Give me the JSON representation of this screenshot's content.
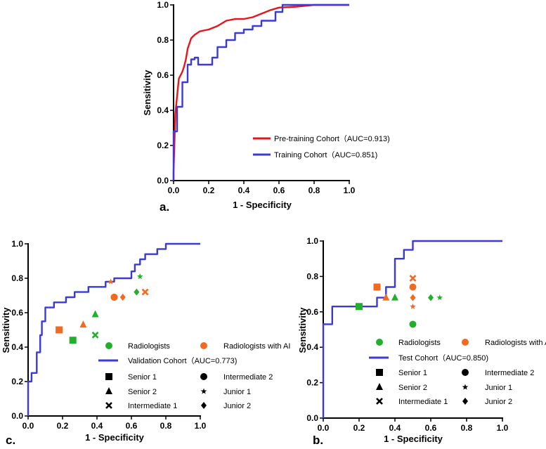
{
  "colors": {
    "red": "#e8141b",
    "blue": "#3a3ad6",
    "green": "#22b02a",
    "orange": "#f26a21",
    "black": "#000000"
  },
  "chart_data": [
    {
      "id": "a",
      "type": "line",
      "panel_label": "a.",
      "xlabel": "1 - Specificity",
      "ylabel": "Sensitivity",
      "xlim": [
        0,
        1
      ],
      "ylim": [
        0,
        1
      ],
      "xticks": [
        "0.0",
        "0.2",
        "0.4",
        "0.6",
        "0.8",
        "1.0"
      ],
      "yticks": [
        "0.0",
        "0.2",
        "0.4",
        "0.6",
        "0.8",
        "1.0"
      ],
      "series": [
        {
          "name": "Pre-training Cohort（AUC=0.913)",
          "color": "red",
          "step": false,
          "points": [
            [
              0,
              0
            ],
            [
              0,
              0.05
            ],
            [
              0.005,
              0.22
            ],
            [
              0.01,
              0.38
            ],
            [
              0.02,
              0.48
            ],
            [
              0.03,
              0.58
            ],
            [
              0.04,
              0.6
            ],
            [
              0.05,
              0.62
            ],
            [
              0.06,
              0.65
            ],
            [
              0.07,
              0.69
            ],
            [
              0.08,
              0.75
            ],
            [
              0.09,
              0.78
            ],
            [
              0.1,
              0.81
            ],
            [
              0.12,
              0.83
            ],
            [
              0.15,
              0.85
            ],
            [
              0.2,
              0.86
            ],
            [
              0.25,
              0.88
            ],
            [
              0.3,
              0.91
            ],
            [
              0.35,
              0.92
            ],
            [
              0.4,
              0.92
            ],
            [
              0.45,
              0.93
            ],
            [
              0.5,
              0.95
            ],
            [
              0.55,
              0.97
            ],
            [
              0.6,
              0.985
            ],
            [
              0.7,
              0.99
            ],
            [
              0.8,
              1.0
            ],
            [
              1.0,
              1.0
            ]
          ]
        },
        {
          "name": "Training Cohort（AUC=0.851)",
          "color": "blue",
          "step": true,
          "points": [
            [
              0,
              0
            ],
            [
              0,
              0.28
            ],
            [
              0.02,
              0.28
            ],
            [
              0.02,
              0.42
            ],
            [
              0.05,
              0.42
            ],
            [
              0.05,
              0.56
            ],
            [
              0.08,
              0.56
            ],
            [
              0.08,
              0.66
            ],
            [
              0.1,
              0.66
            ],
            [
              0.1,
              0.69
            ],
            [
              0.12,
              0.69
            ],
            [
              0.12,
              0.7
            ],
            [
              0.14,
              0.7
            ],
            [
              0.14,
              0.66
            ],
            [
              0.22,
              0.66
            ],
            [
              0.22,
              0.7
            ],
            [
              0.25,
              0.7
            ],
            [
              0.25,
              0.76
            ],
            [
              0.3,
              0.76
            ],
            [
              0.3,
              0.8
            ],
            [
              0.35,
              0.8
            ],
            [
              0.35,
              0.84
            ],
            [
              0.4,
              0.84
            ],
            [
              0.4,
              0.86
            ],
            [
              0.45,
              0.86
            ],
            [
              0.45,
              0.88
            ],
            [
              0.5,
              0.88
            ],
            [
              0.5,
              0.91
            ],
            [
              0.58,
              0.91
            ],
            [
              0.58,
              0.96
            ],
            [
              0.62,
              0.96
            ],
            [
              0.62,
              1.0
            ],
            [
              1.0,
              1.0
            ]
          ]
        }
      ]
    },
    {
      "id": "c",
      "type": "line",
      "panel_label": "c.",
      "xlabel": "1 - Specificity",
      "ylabel": "Sensitivity",
      "xlim": [
        0,
        1
      ],
      "ylim": [
        0,
        1
      ],
      "xticks": [
        "0.0",
        "0.2",
        "0.4",
        "0.6",
        "0.8",
        "1.0"
      ],
      "yticks": [
        "0.0",
        "0.2",
        "0.4",
        "0.6",
        "0.8",
        "1.0"
      ],
      "series": [
        {
          "name": "Validation Cohort（AUC=0.773)",
          "color": "blue",
          "step": true,
          "points": [
            [
              0,
              0
            ],
            [
              0,
              0.2
            ],
            [
              0.02,
              0.2
            ],
            [
              0.02,
              0.25
            ],
            [
              0.05,
              0.25
            ],
            [
              0.05,
              0.37
            ],
            [
              0.07,
              0.37
            ],
            [
              0.07,
              0.47
            ],
            [
              0.08,
              0.47
            ],
            [
              0.08,
              0.55
            ],
            [
              0.1,
              0.55
            ],
            [
              0.1,
              0.63
            ],
            [
              0.15,
              0.63
            ],
            [
              0.15,
              0.66
            ],
            [
              0.22,
              0.66
            ],
            [
              0.22,
              0.69
            ],
            [
              0.27,
              0.69
            ],
            [
              0.27,
              0.72
            ],
            [
              0.35,
              0.72
            ],
            [
              0.35,
              0.75
            ],
            [
              0.45,
              0.75
            ],
            [
              0.45,
              0.78
            ],
            [
              0.5,
              0.78
            ],
            [
              0.5,
              0.8
            ],
            [
              0.6,
              0.8
            ],
            [
              0.6,
              0.84
            ],
            [
              0.62,
              0.84
            ],
            [
              0.62,
              0.88
            ],
            [
              0.65,
              0.88
            ],
            [
              0.65,
              0.91
            ],
            [
              0.68,
              0.91
            ],
            [
              0.68,
              0.94
            ],
            [
              0.75,
              0.94
            ],
            [
              0.75,
              0.97
            ],
            [
              0.8,
              0.97
            ],
            [
              0.8,
              1.0
            ],
            [
              1.0,
              1.0
            ]
          ]
        }
      ],
      "markers": [
        {
          "reader": "Senior 1",
          "group": "Radiologists",
          "shape": "square",
          "x": 0.26,
          "y": 0.44
        },
        {
          "reader": "Senior 1",
          "group": "Radiologists with AI",
          "shape": "square",
          "x": 0.18,
          "y": 0.5
        },
        {
          "reader": "Senior 2",
          "group": "Radiologists",
          "shape": "triangle",
          "x": 0.39,
          "y": 0.59
        },
        {
          "reader": "Senior 2",
          "group": "Radiologists with AI",
          "shape": "triangle",
          "x": 0.32,
          "y": 0.53
        },
        {
          "reader": "Intermediate 1",
          "group": "Radiologists",
          "shape": "cross",
          "x": 0.39,
          "y": 0.47
        },
        {
          "reader": "Intermediate 1",
          "group": "Radiologists with AI",
          "shape": "cross",
          "x": 0.68,
          "y": 0.72
        },
        {
          "reader": "Intermediate 2",
          "group": "Radiologists",
          "shape": "circle",
          "x": 0.5,
          "y": 0.69
        },
        {
          "reader": "Intermediate 2",
          "group": "Radiologists with AI",
          "shape": "circle",
          "x": 0.5,
          "y": 0.69
        },
        {
          "reader": "Junior 1",
          "group": "Radiologists",
          "shape": "star",
          "x": 0.65,
          "y": 0.81
        },
        {
          "reader": "Junior 1",
          "group": "Radiologists with AI",
          "shape": "star",
          "x": 0.48,
          "y": 0.78
        },
        {
          "reader": "Junior 2",
          "group": "Radiologists",
          "shape": "diamond",
          "x": 0.63,
          "y": 0.72
        },
        {
          "reader": "Junior 2",
          "group": "Radiologists with AI",
          "shape": "diamond",
          "x": 0.55,
          "y": 0.69
        }
      ]
    },
    {
      "id": "b",
      "type": "line",
      "panel_label": "b.",
      "xlabel": "1 - Specificity",
      "ylabel": "Sensitivity",
      "xlim": [
        0,
        1
      ],
      "ylim": [
        0,
        1
      ],
      "xticks": [
        "0.0",
        "0.2",
        "0.4",
        "0.6",
        "0.8",
        "1.0"
      ],
      "yticks": [
        "0.0",
        "0.2",
        "0.4",
        "0.6",
        "0.8",
        "1.0"
      ],
      "series": [
        {
          "name": "Test Cohort（AUC=0.850)",
          "color": "blue",
          "step": true,
          "points": [
            [
              0,
              0
            ],
            [
              0,
              0.53
            ],
            [
              0.05,
              0.53
            ],
            [
              0.05,
              0.63
            ],
            [
              0.3,
              0.63
            ],
            [
              0.3,
              0.68
            ],
            [
              0.35,
              0.68
            ],
            [
              0.35,
              0.74
            ],
            [
              0.4,
              0.74
            ],
            [
              0.4,
              0.9
            ],
            [
              0.45,
              0.9
            ],
            [
              0.45,
              0.95
            ],
            [
              0.5,
              0.95
            ],
            [
              0.5,
              1.0
            ],
            [
              1.0,
              1.0
            ]
          ]
        }
      ],
      "markers": [
        {
          "reader": "Senior 1",
          "group": "Radiologists",
          "shape": "square",
          "x": 0.2,
          "y": 0.63
        },
        {
          "reader": "Senior 1",
          "group": "Radiologists with AI",
          "shape": "square",
          "x": 0.3,
          "y": 0.74
        },
        {
          "reader": "Senior 2",
          "group": "Radiologists",
          "shape": "triangle",
          "x": 0.4,
          "y": 0.68
        },
        {
          "reader": "Senior 2",
          "group": "Radiologists with AI",
          "shape": "triangle",
          "x": 0.35,
          "y": 0.68
        },
        {
          "reader": "Intermediate 1",
          "group": "Radiologists",
          "shape": "cross",
          "x": 0.2,
          "y": 0.63
        },
        {
          "reader": "Intermediate 1",
          "group": "Radiologists with AI",
          "shape": "cross",
          "x": 0.5,
          "y": 0.79
        },
        {
          "reader": "Intermediate 2",
          "group": "Radiologists",
          "shape": "circle",
          "x": 0.5,
          "y": 0.53
        },
        {
          "reader": "Intermediate 2",
          "group": "Radiologists with AI",
          "shape": "circle",
          "x": 0.5,
          "y": 0.74
        },
        {
          "reader": "Junior 1",
          "group": "Radiologists",
          "shape": "star",
          "x": 0.65,
          "y": 0.68
        },
        {
          "reader": "Junior 1",
          "group": "Radiologists with AI",
          "shape": "star",
          "x": 0.5,
          "y": 0.63
        },
        {
          "reader": "Junior 2",
          "group": "Radiologists",
          "shape": "diamond",
          "x": 0.6,
          "y": 0.68
        },
        {
          "reader": "Junior 2",
          "group": "Radiologists with AI",
          "shape": "diamond",
          "x": 0.5,
          "y": 0.68
        }
      ]
    }
  ],
  "legend_groups": {
    "radiologists": "Radiologists",
    "with_ai": "Radiologists with AI"
  },
  "legend_readers": [
    "Senior 1",
    "Intermediate 2",
    "Senior 2",
    "Junior 1",
    "Intermediate 1",
    "Junior 2"
  ]
}
